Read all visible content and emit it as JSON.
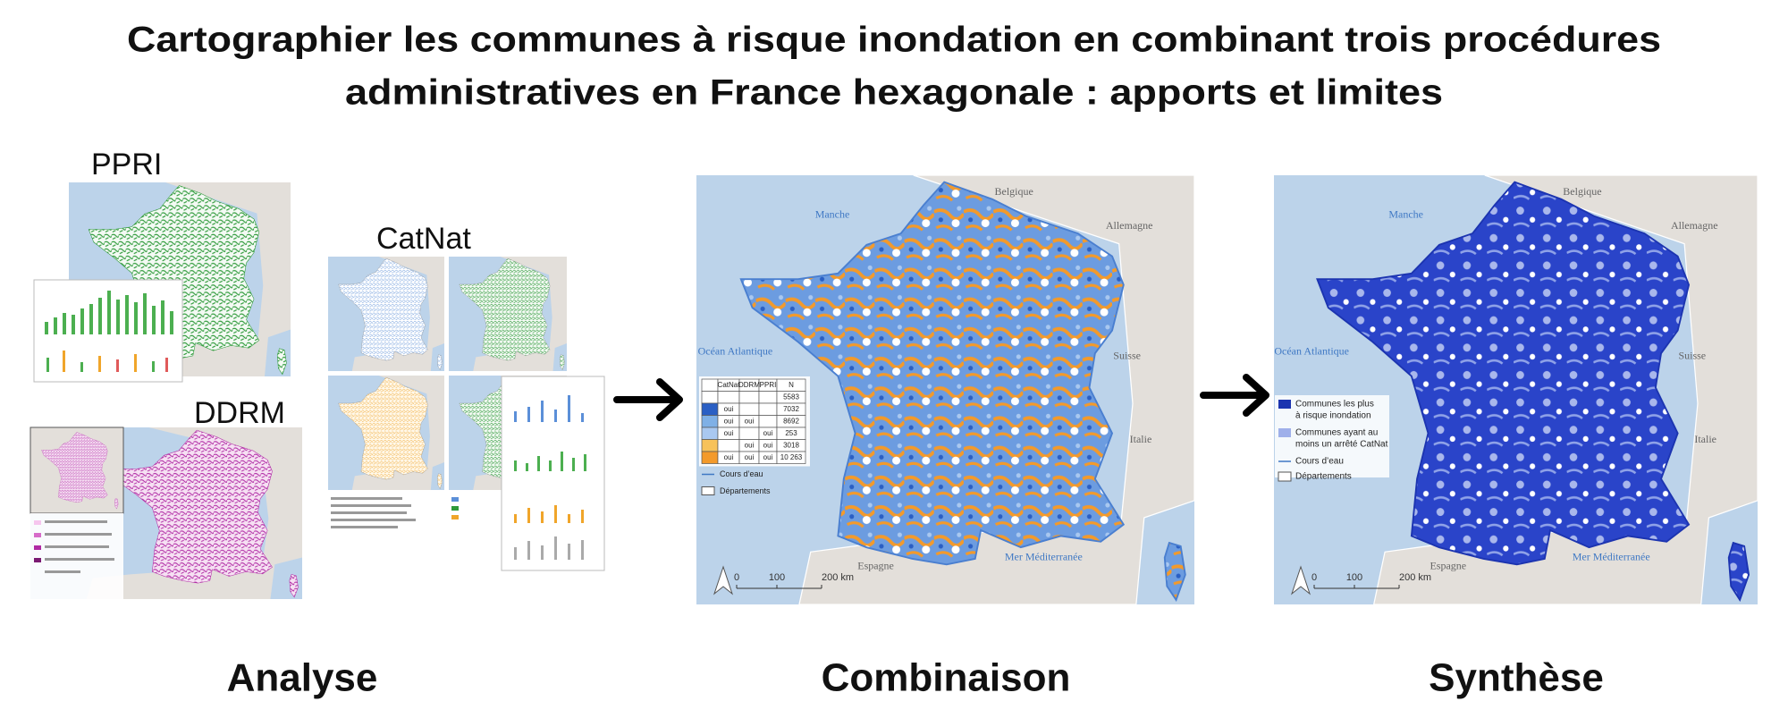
{
  "title": [
    "Cartographier les communes à risque inondation en combinant trois procédures",
    "administratives en France hexagonale : apports et limites"
  ],
  "analyse": {
    "label": "Analyse",
    "ppri": "PPRI",
    "catnat": "CatNat",
    "ddrm": "DDRM"
  },
  "combinaison": {
    "label": "Combinaison",
    "places": [
      "Belgique",
      "Manche",
      "Allemagne",
      "Océan Atlantique",
      "Suisse",
      "Italie",
      "Espagne",
      "Mer Méditerranée"
    ],
    "scale": [
      "0",
      "100",
      "200 km"
    ],
    "table": {
      "headers": [
        "CatNat",
        "DDRM",
        "PPRI",
        "N"
      ],
      "rows": [
        [
          null,
          null,
          null,
          "5583"
        ],
        [
          "oui",
          null,
          null,
          "7032"
        ],
        [
          "oui",
          "oui",
          null,
          "8692"
        ],
        [
          "oui",
          null,
          "oui",
          "253"
        ],
        [
          null,
          "oui",
          "oui",
          "3018"
        ],
        [
          "oui",
          "oui",
          "oui",
          "10 263"
        ]
      ]
    },
    "legend": [
      "Cours d’eau",
      "Départements"
    ]
  },
  "synthese": {
    "label": "Synthèse",
    "places": [
      "Belgique",
      "Manche",
      "Allemagne",
      "Océan Atlantique",
      "Suisse",
      "Italie",
      "Espagne",
      "Mer Méditerranée"
    ],
    "scale": [
      "0",
      "100",
      "200 km"
    ],
    "legend": [
      [
        "Communes les plus",
        "à risque inondation"
      ],
      [
        "Communes ayant au",
        "moins un arrêté CatNat"
      ],
      "Cours d’eau",
      "Départements"
    ]
  }
}
